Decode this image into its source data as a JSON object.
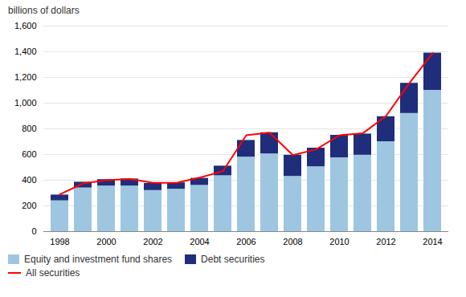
{
  "chart_data": {
    "type": "bar",
    "stacked": true,
    "ylabel": "billions of dollars",
    "categories": [
      "1998",
      null,
      "2000",
      null,
      "2002",
      null,
      "2004",
      null,
      "2006",
      null,
      "2008",
      null,
      "2010",
      null,
      "2012",
      null,
      "2014"
    ],
    "series": [
      {
        "name": "Equity and investment fund shares",
        "type": "bar",
        "color": "#9EC6E0",
        "values": [
          240,
          340,
          355,
          355,
          320,
          330,
          360,
          435,
          580,
          605,
          430,
          505,
          575,
          595,
          700,
          920,
          1100
        ]
      },
      {
        "name": "Debt securities",
        "type": "bar",
        "color": "#1F2D7B",
        "values": [
          45,
          45,
          50,
          55,
          55,
          50,
          55,
          75,
          130,
          165,
          165,
          145,
          175,
          165,
          195,
          235,
          290
        ]
      },
      {
        "name": "All securities",
        "type": "line",
        "color": "#FF0000",
        "values": [
          290,
          375,
          400,
          410,
          380,
          380,
          420,
          470,
          750,
          770,
          595,
          640,
          750,
          765,
          900,
          1155,
          1390
        ]
      }
    ],
    "ylim": [
      0,
      1600
    ],
    "yticks": [
      0,
      200,
      400,
      600,
      800,
      {
        "value": 1000,
        "label": "1,000"
      },
      {
        "value": 1200,
        "label": "1,200"
      },
      {
        "value": 1400,
        "label": "1,400"
      },
      {
        "value": 1600,
        "label": "1,600"
      }
    ],
    "grid": true
  }
}
